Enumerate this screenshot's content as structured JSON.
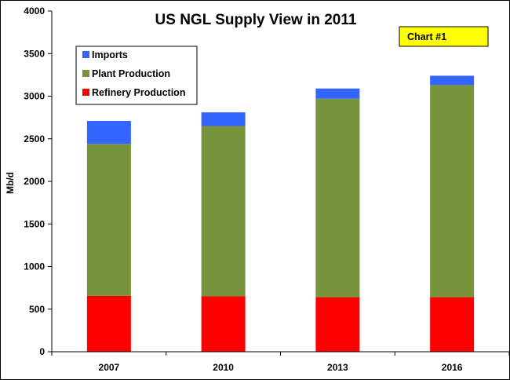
{
  "chart_data": {
    "type": "bar",
    "stacked": true,
    "title": "US NGL Supply View in 2011",
    "badge": "Chart #1",
    "xlabel": "",
    "ylabel": "Mb/d",
    "ylim": [
      0,
      4000
    ],
    "ytick_step": 500,
    "yticks": [
      "0",
      "500",
      "1000",
      "1500",
      "2000",
      "2500",
      "3000",
      "3500",
      "4000"
    ],
    "grid": false,
    "legend_position": "top-left",
    "categories": [
      "2007",
      "2010",
      "2013",
      "2016"
    ],
    "series": [
      {
        "name": "Refinery Production",
        "color": "#ff0000",
        "values": [
          655,
          650,
          640,
          640
        ]
      },
      {
        "name": "Plant Production",
        "color": "#77933c",
        "values": [
          1785,
          2000,
          2330,
          2490
        ]
      },
      {
        "name": "Imports",
        "color": "#3366ff",
        "values": [
          270,
          160,
          120,
          110
        ]
      }
    ],
    "legend_order": [
      "Imports",
      "Plant Production",
      "Refinery Production"
    ],
    "colors": {
      "badge_fill": "#ffff00",
      "axis": "#000000"
    }
  }
}
